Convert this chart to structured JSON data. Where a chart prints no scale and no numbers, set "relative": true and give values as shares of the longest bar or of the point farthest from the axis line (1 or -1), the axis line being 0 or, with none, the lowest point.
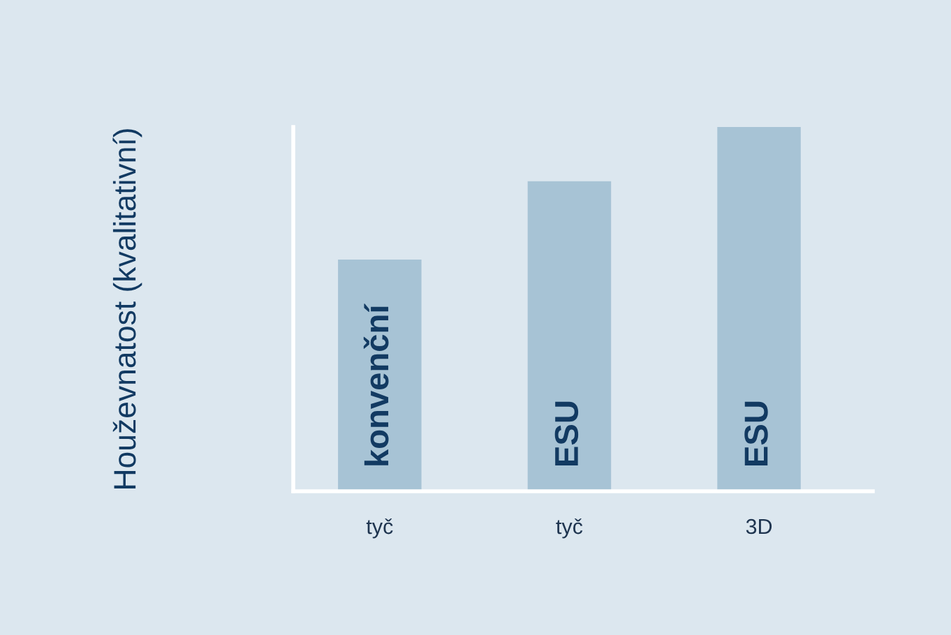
{
  "chart_data": {
    "type": "bar",
    "ylabel": "Houževnatost (kvalitativní)",
    "categories": [
      "tyč",
      "tyč",
      "3D"
    ],
    "values": [
      0.636,
      0.851,
      1
    ],
    "relative": true,
    "color": "#a7c3d5",
    "annotations": [
      "konvenční",
      "ESU",
      "ESU"
    ],
    "grid": false
  }
}
